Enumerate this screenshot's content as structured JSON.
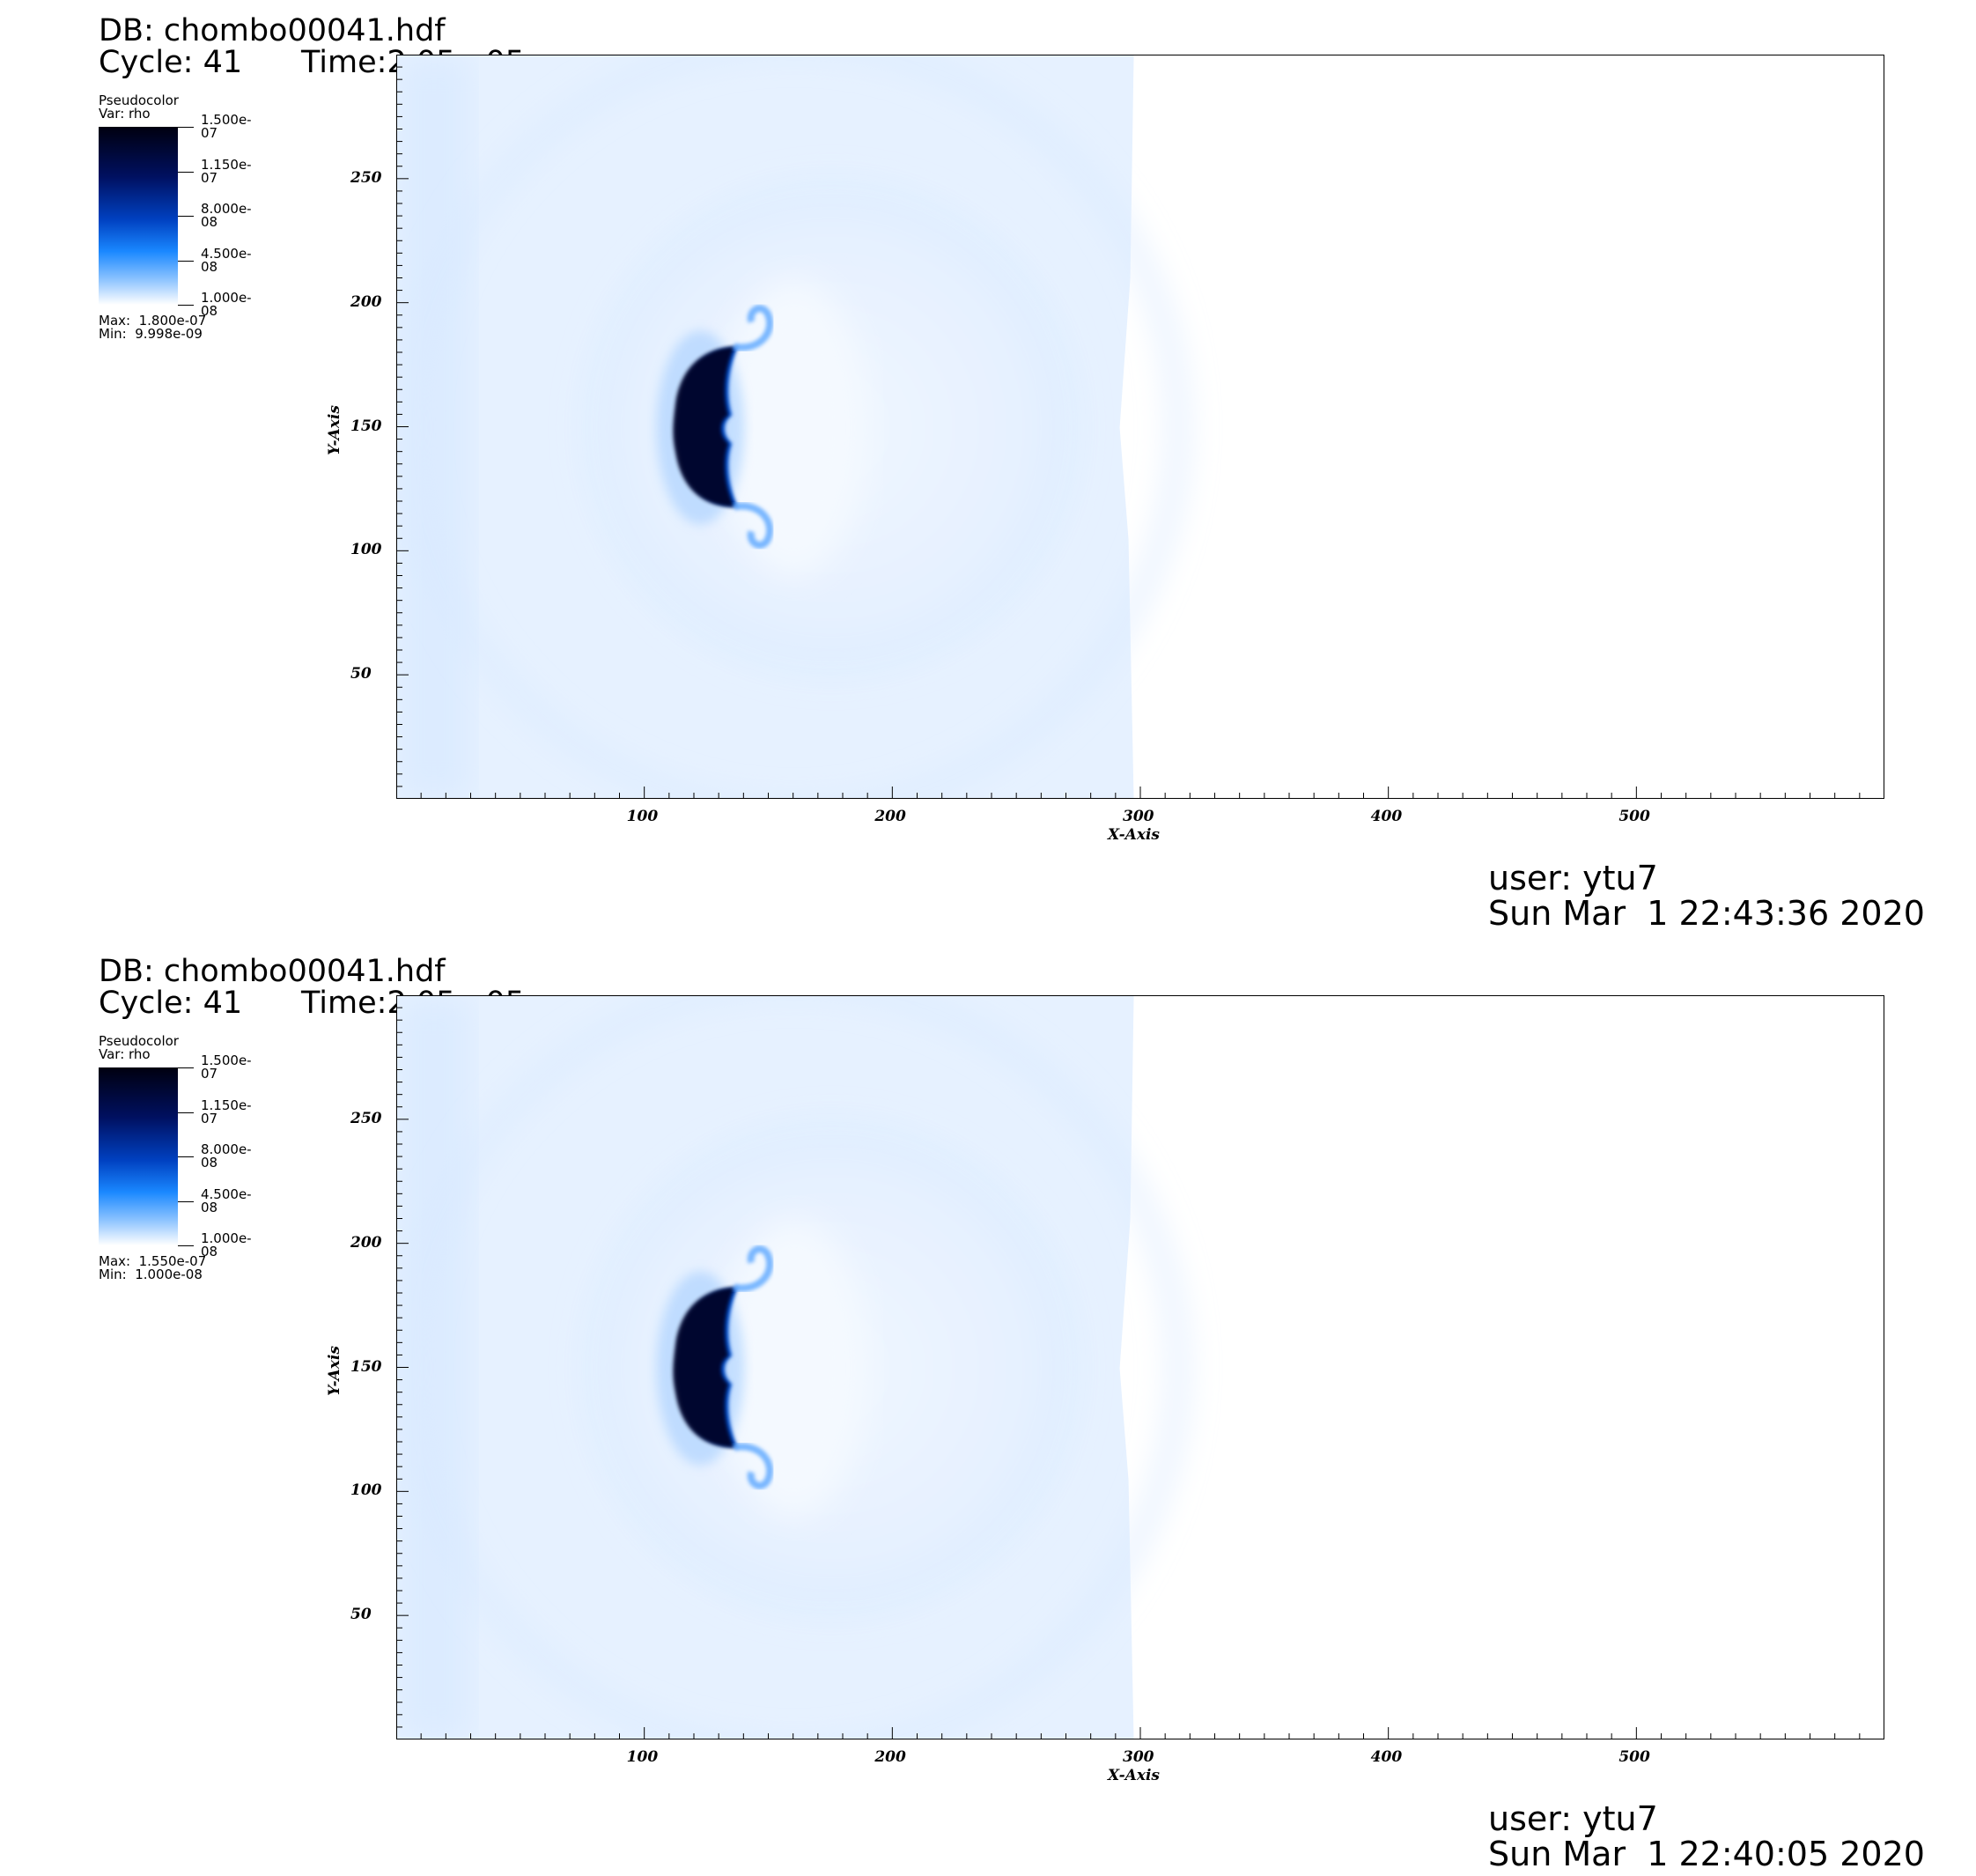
{
  "panels": [
    {
      "db": "DB: chombo00041.hdf",
      "cycle": "Cycle: 41",
      "time": "Time:2.05e-05",
      "legend": {
        "plot_type": "Pseudocolor",
        "var": "Var: rho",
        "ticks": [
          "1.500e-07",
          "1.150e-07",
          "8.000e-08",
          "4.500e-08",
          "1.000e-08"
        ],
        "max": "Max:  1.800e-07",
        "min": "Min:  9.998e-09"
      },
      "user": "user: ytu7",
      "date": "Sun Mar  1 22:43:36 2020"
    },
    {
      "db": "DB: chombo00041.hdf",
      "cycle": "Cycle: 41",
      "time": "Time:2.05e-05",
      "legend": {
        "plot_type": "Pseudocolor",
        "var": "Var: rho",
        "ticks": [
          "1.500e-07",
          "1.150e-07",
          "8.000e-08",
          "4.500e-08",
          "1.000e-08"
        ],
        "max": "Max:  1.550e-07",
        "min": "Min:  1.000e-08"
      },
      "user": "user: ytu7",
      "date": "Sun Mar  1 22:40:05 2020"
    }
  ],
  "chart_data": [
    {
      "type": "heatmap",
      "title": "",
      "xlabel": "X-Axis",
      "ylabel": "Y-Axis",
      "xlim": [
        0,
        600
      ],
      "ylim": [
        0,
        300
      ],
      "xticks": [
        100,
        200,
        300,
        400,
        500
      ],
      "yticks": [
        50,
        100,
        150,
        200,
        250
      ],
      "variable": "rho",
      "colormap": [
        "#ffffff",
        "#1a88ff",
        "#0040c0",
        "#001060",
        "#000010"
      ],
      "color_range": [
        1e-08,
        1.5e-07
      ]
    },
    {
      "type": "heatmap",
      "title": "",
      "xlabel": "X-Axis",
      "ylabel": "Y-Axis",
      "xlim": [
        0,
        600
      ],
      "ylim": [
        0,
        300
      ],
      "xticks": [
        100,
        200,
        300,
        400,
        500
      ],
      "yticks": [
        50,
        100,
        150,
        200,
        250
      ],
      "variable": "rho",
      "colormap": [
        "#ffffff",
        "#1a88ff",
        "#0040c0",
        "#001060",
        "#000010"
      ],
      "color_range": [
        1e-08,
        1.5e-07
      ]
    }
  ]
}
